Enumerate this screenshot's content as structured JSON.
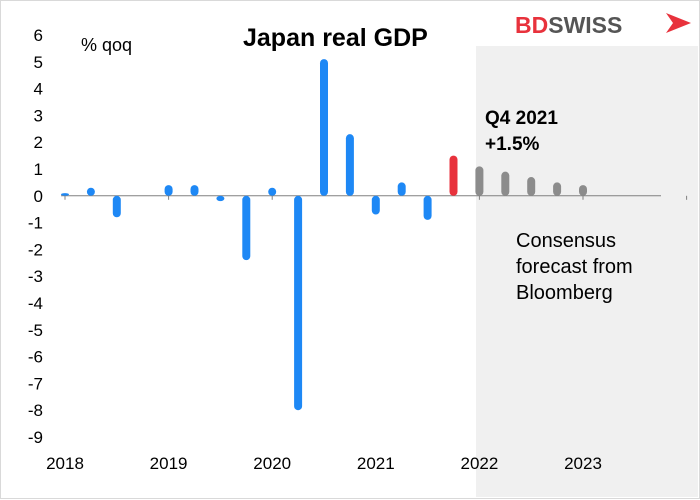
{
  "chart_data": {
    "type": "bar",
    "title": "Japan real GDP",
    "ylabel": "% qoq",
    "ylim": [
      -9,
      6
    ],
    "y_ticks": [
      "6",
      "5",
      "4",
      "3",
      "2",
      "1",
      "0",
      "-1",
      "-2",
      "-3",
      "-4",
      "-5",
      "-6",
      "-7",
      "-8",
      "-9"
    ],
    "x_tick_labels": [
      "2018",
      "2019",
      "2020",
      "2021",
      "2022",
      "2023"
    ],
    "categories": [
      "2018 Q1",
      "2018 Q2",
      "2018 Q3",
      "2018 Q4",
      "2019 Q1",
      "2019 Q2",
      "2019 Q3",
      "2019 Q4",
      "2020 Q1",
      "2020 Q2",
      "2020 Q3",
      "2020 Q4",
      "2021 Q1",
      "2021 Q2",
      "2021 Q3",
      "2021 Q4",
      "2022 Q1",
      "2022 Q2",
      "2022 Q3",
      "2022 Q4",
      "2023 Q1"
    ],
    "series": [
      {
        "color": "#1e88f5",
        "values": [
          0.1,
          0.3,
          -0.8,
          null,
          0.4,
          0.4,
          -0.2,
          -2.4,
          0.3,
          -8.0,
          5.1,
          2.3,
          -0.7,
          0.5,
          -0.9,
          null,
          null,
          null,
          null,
          null,
          null
        ]
      },
      {
        "color": "#e8323c",
        "values": [
          null,
          null,
          null,
          null,
          null,
          null,
          null,
          null,
          null,
          null,
          null,
          null,
          null,
          null,
          null,
          1.5,
          null,
          null,
          null,
          null,
          null
        ]
      },
      {
        "color": "#8c8c8c",
        "values": [
          null,
          null,
          null,
          null,
          null,
          null,
          null,
          null,
          null,
          null,
          null,
          null,
          null,
          null,
          null,
          null,
          1.1,
          0.9,
          0.7,
          0.5,
          0.4
        ]
      }
    ],
    "annotations": {
      "highlight_line1": "Q4 2021",
      "highlight_line2": "+1.5%",
      "forecast_line1": "Consensus",
      "forecast_line2": "forecast from",
      "forecast_line3": "Bloomberg"
    },
    "grid": false,
    "legend": "none"
  },
  "logo": {
    "part1": "BD",
    "part2": "SWISS",
    "color1": "#e8323c",
    "color2": "#555555"
  },
  "colors": {
    "shade": "#f0f0f0",
    "axis": "#808080"
  }
}
